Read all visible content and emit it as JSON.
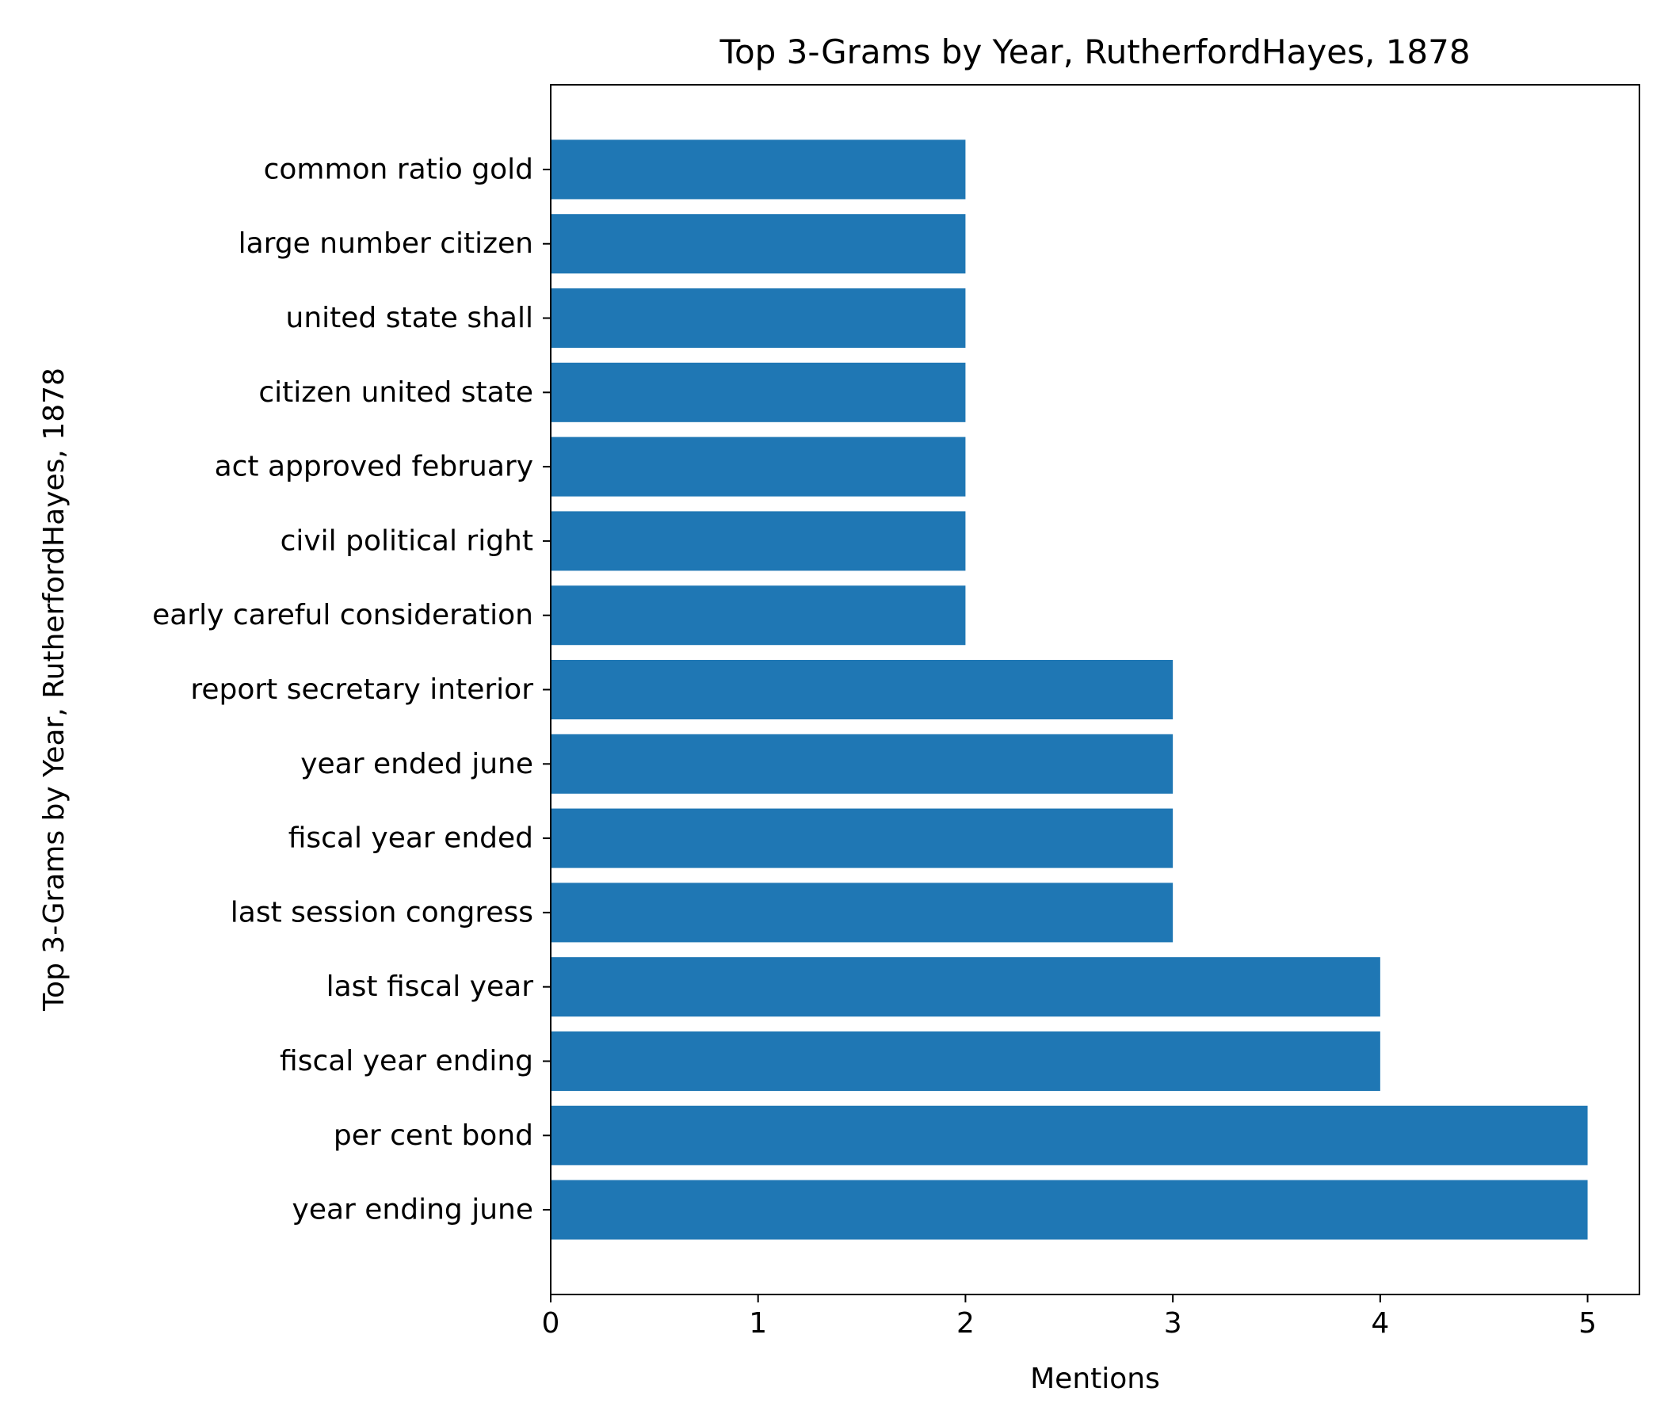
{
  "chart_data": {
    "type": "bar",
    "orientation": "horizontal",
    "title": "Top 3-Grams by Year, RutherfordHayes, 1878",
    "xlabel": "Mentions",
    "ylabel": "Top 3-Grams by Year, RutherfordHayes, 1878",
    "categories": [
      "year ending june",
      "per cent bond",
      "fiscal year ending",
      "last fiscal year",
      "last session congress",
      "fiscal year ended",
      "year ended june",
      "report secretary interior",
      "early careful consideration",
      "civil political right",
      "act approved february",
      "citizen united state",
      "united state shall",
      "large number citizen",
      "common ratio gold"
    ],
    "values": [
      5,
      5,
      4,
      4,
      3,
      3,
      3,
      3,
      2,
      2,
      2,
      2,
      2,
      2,
      2
    ],
    "xlim": [
      0,
      5.25
    ],
    "xticks": [
      "0",
      "1",
      "2",
      "3",
      "4",
      "5"
    ],
    "grid": false,
    "legend": "none",
    "bar_color": "#1f77b4"
  }
}
